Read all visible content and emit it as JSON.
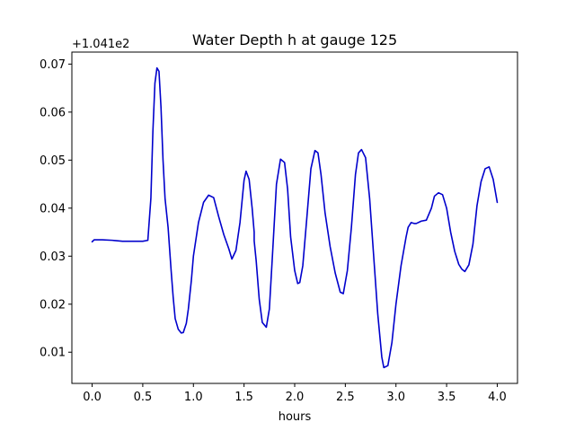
{
  "chart_data": {
    "type": "line",
    "title": "Water Depth h at gauge 125",
    "xlabel": "hours",
    "ylabel": "",
    "offset_label": "+1.041e2",
    "xlim": [
      -0.2,
      4.2
    ],
    "ylim": [
      0.0035,
      0.0725
    ],
    "x_ticks": [
      0.0,
      0.5,
      1.0,
      1.5,
      2.0,
      2.5,
      3.0,
      3.5,
      4.0
    ],
    "x_tick_labels": [
      "0.0",
      "0.5",
      "1.0",
      "1.5",
      "2.0",
      "2.5",
      "3.0",
      "3.5",
      "4.0"
    ],
    "y_ticks": [
      0.01,
      0.02,
      0.03,
      0.04,
      0.05,
      0.06,
      0.07
    ],
    "y_tick_labels": [
      "0.01",
      "0.02",
      "0.03",
      "0.04",
      "0.05",
      "0.06",
      "0.07"
    ],
    "grid": false,
    "line_color": "#0000cc",
    "series": [
      {
        "x": [
          0.0,
          0.02,
          0.1,
          0.2,
          0.3,
          0.4,
          0.5,
          0.55,
          0.58,
          0.6,
          0.62,
          0.64,
          0.66,
          0.68,
          0.7,
          0.72,
          0.75,
          0.78,
          0.8,
          0.82,
          0.85,
          0.88,
          0.9,
          0.93,
          0.95,
          0.98,
          1.0,
          1.05,
          1.1,
          1.15,
          1.2,
          1.25,
          1.3,
          1.35,
          1.38,
          1.42,
          1.46,
          1.5,
          1.52,
          1.55,
          1.58,
          1.6,
          1.6,
          1.62,
          1.65,
          1.68,
          1.72,
          1.75,
          1.78,
          1.82,
          1.86,
          1.9,
          1.93,
          1.96,
          2.0,
          2.03,
          2.05,
          2.08,
          2.12,
          2.16,
          2.2,
          2.23,
          2.26,
          2.3,
          2.35,
          2.4,
          2.45,
          2.48,
          2.52,
          2.56,
          2.6,
          2.63,
          2.66,
          2.7,
          2.74,
          2.78,
          2.82,
          2.86,
          2.88,
          2.92,
          2.96,
          3.0,
          3.05,
          3.1,
          3.12,
          3.15,
          3.18,
          3.2,
          3.25,
          3.3,
          3.35,
          3.38,
          3.42,
          3.46,
          3.5,
          3.54,
          3.58,
          3.62,
          3.65,
          3.68,
          3.72,
          3.76,
          3.8,
          3.84,
          3.88,
          3.92,
          3.96,
          4.0
        ],
        "y": [
          0.033,
          0.0334,
          0.0334,
          0.0333,
          0.0331,
          0.0331,
          0.0331,
          0.0333,
          0.042,
          0.056,
          0.066,
          0.0692,
          0.0685,
          0.061,
          0.05,
          0.042,
          0.036,
          0.027,
          0.0215,
          0.017,
          0.0148,
          0.014,
          0.0141,
          0.016,
          0.019,
          0.025,
          0.03,
          0.037,
          0.0412,
          0.0427,
          0.0422,
          0.0382,
          0.0345,
          0.0315,
          0.0294,
          0.0312,
          0.037,
          0.0458,
          0.0477,
          0.046,
          0.04,
          0.035,
          0.0332,
          0.029,
          0.021,
          0.0162,
          0.0152,
          0.019,
          0.03,
          0.045,
          0.0502,
          0.0495,
          0.044,
          0.034,
          0.027,
          0.0243,
          0.0245,
          0.028,
          0.038,
          0.0482,
          0.052,
          0.0515,
          0.047,
          0.039,
          0.032,
          0.0265,
          0.0225,
          0.0222,
          0.027,
          0.036,
          0.047,
          0.0515,
          0.0522,
          0.0505,
          0.042,
          0.03,
          0.018,
          0.009,
          0.0068,
          0.0072,
          0.012,
          0.02,
          0.028,
          0.034,
          0.036,
          0.037,
          0.0368,
          0.0368,
          0.0373,
          0.0375,
          0.04,
          0.0425,
          0.0432,
          0.0428,
          0.04,
          0.035,
          0.031,
          0.0283,
          0.0273,
          0.0268,
          0.0282,
          0.0325,
          0.0405,
          0.0455,
          0.0482,
          0.0486,
          0.046,
          0.0412
        ]
      }
    ]
  }
}
